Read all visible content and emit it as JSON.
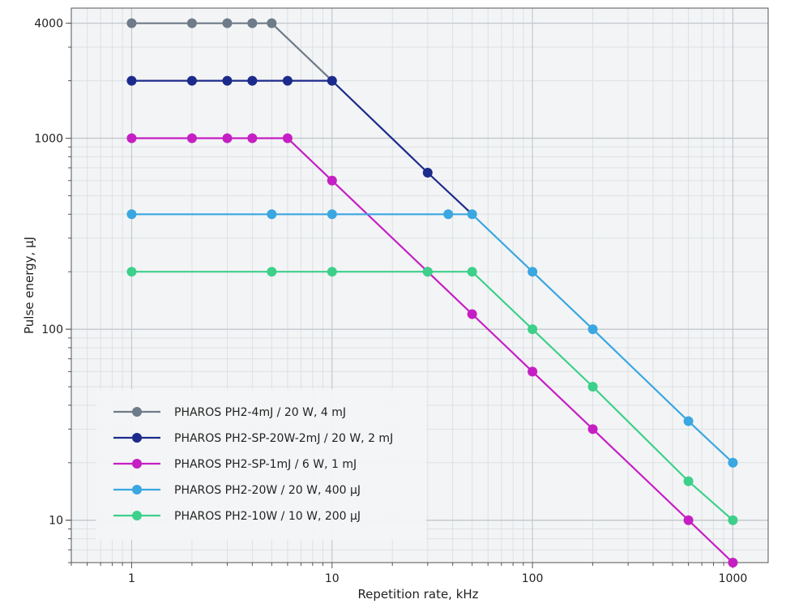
{
  "chart_data": {
    "type": "line",
    "title": "",
    "xlabel": "Repetition rate, kHz",
    "ylabel": "Pulse energy, µJ",
    "x_scale": "log",
    "y_scale": "log",
    "xlim": [
      0.5,
      1500
    ],
    "ylim": [
      6,
      4800
    ],
    "x_ticks": [
      1,
      10,
      100,
      1000
    ],
    "x_tick_labels": [
      "1",
      "10",
      "100",
      "1000"
    ],
    "y_ticks": [
      10,
      100,
      1000,
      4000
    ],
    "y_tick_labels": [
      "10",
      "100",
      "1000",
      "4000"
    ],
    "grid": true,
    "legend_position": "bottom-left",
    "series": [
      {
        "name": "PHAROS PH2-4mJ / 20 W, 4 mJ",
        "color": "#6e7b88",
        "x": [
          1,
          2,
          3,
          4,
          5
        ],
        "y": [
          4000,
          4000,
          4000,
          4000,
          4000
        ],
        "extra_line": {
          "x": [
            5,
            10
          ],
          "y": [
            4000,
            2000
          ]
        }
      },
      {
        "name": "PHAROS PH2-SP-20W-2mJ / 20 W, 2 mJ",
        "color": "#1c2a8c",
        "x": [
          1,
          2,
          3,
          4,
          6,
          10,
          30
        ],
        "y": [
          2000,
          2000,
          2000,
          2000,
          2000,
          2000,
          660
        ],
        "extra_line": {
          "x": [
            30,
            50
          ],
          "y": [
            660,
            400
          ]
        }
      },
      {
        "name": "PHAROS PH2-SP-1mJ / 6 W, 1 mJ",
        "color": "#c51fc4",
        "x": [
          1,
          2,
          3,
          4,
          6,
          10,
          30,
          50,
          100,
          200,
          600,
          1000
        ],
        "y": [
          1000,
          1000,
          1000,
          1000,
          1000,
          600,
          200,
          120,
          60,
          30,
          10,
          6
        ]
      },
      {
        "name": "PHAROS PH2-20W / 20 W, 400 µJ",
        "color": "#3aa7e1",
        "x": [
          1,
          5,
          10,
          38,
          50,
          100,
          200,
          600,
          1000
        ],
        "y": [
          400,
          400,
          400,
          400,
          400,
          200,
          100,
          33,
          20
        ]
      },
      {
        "name": "PHAROS PH2-10W / 10 W, 200 µJ",
        "color": "#3dd08a",
        "x": [
          1,
          5,
          10,
          30,
          50,
          100,
          200,
          600,
          1000
        ],
        "y": [
          200,
          200,
          200,
          200,
          200,
          100,
          50,
          16,
          10
        ]
      }
    ]
  }
}
